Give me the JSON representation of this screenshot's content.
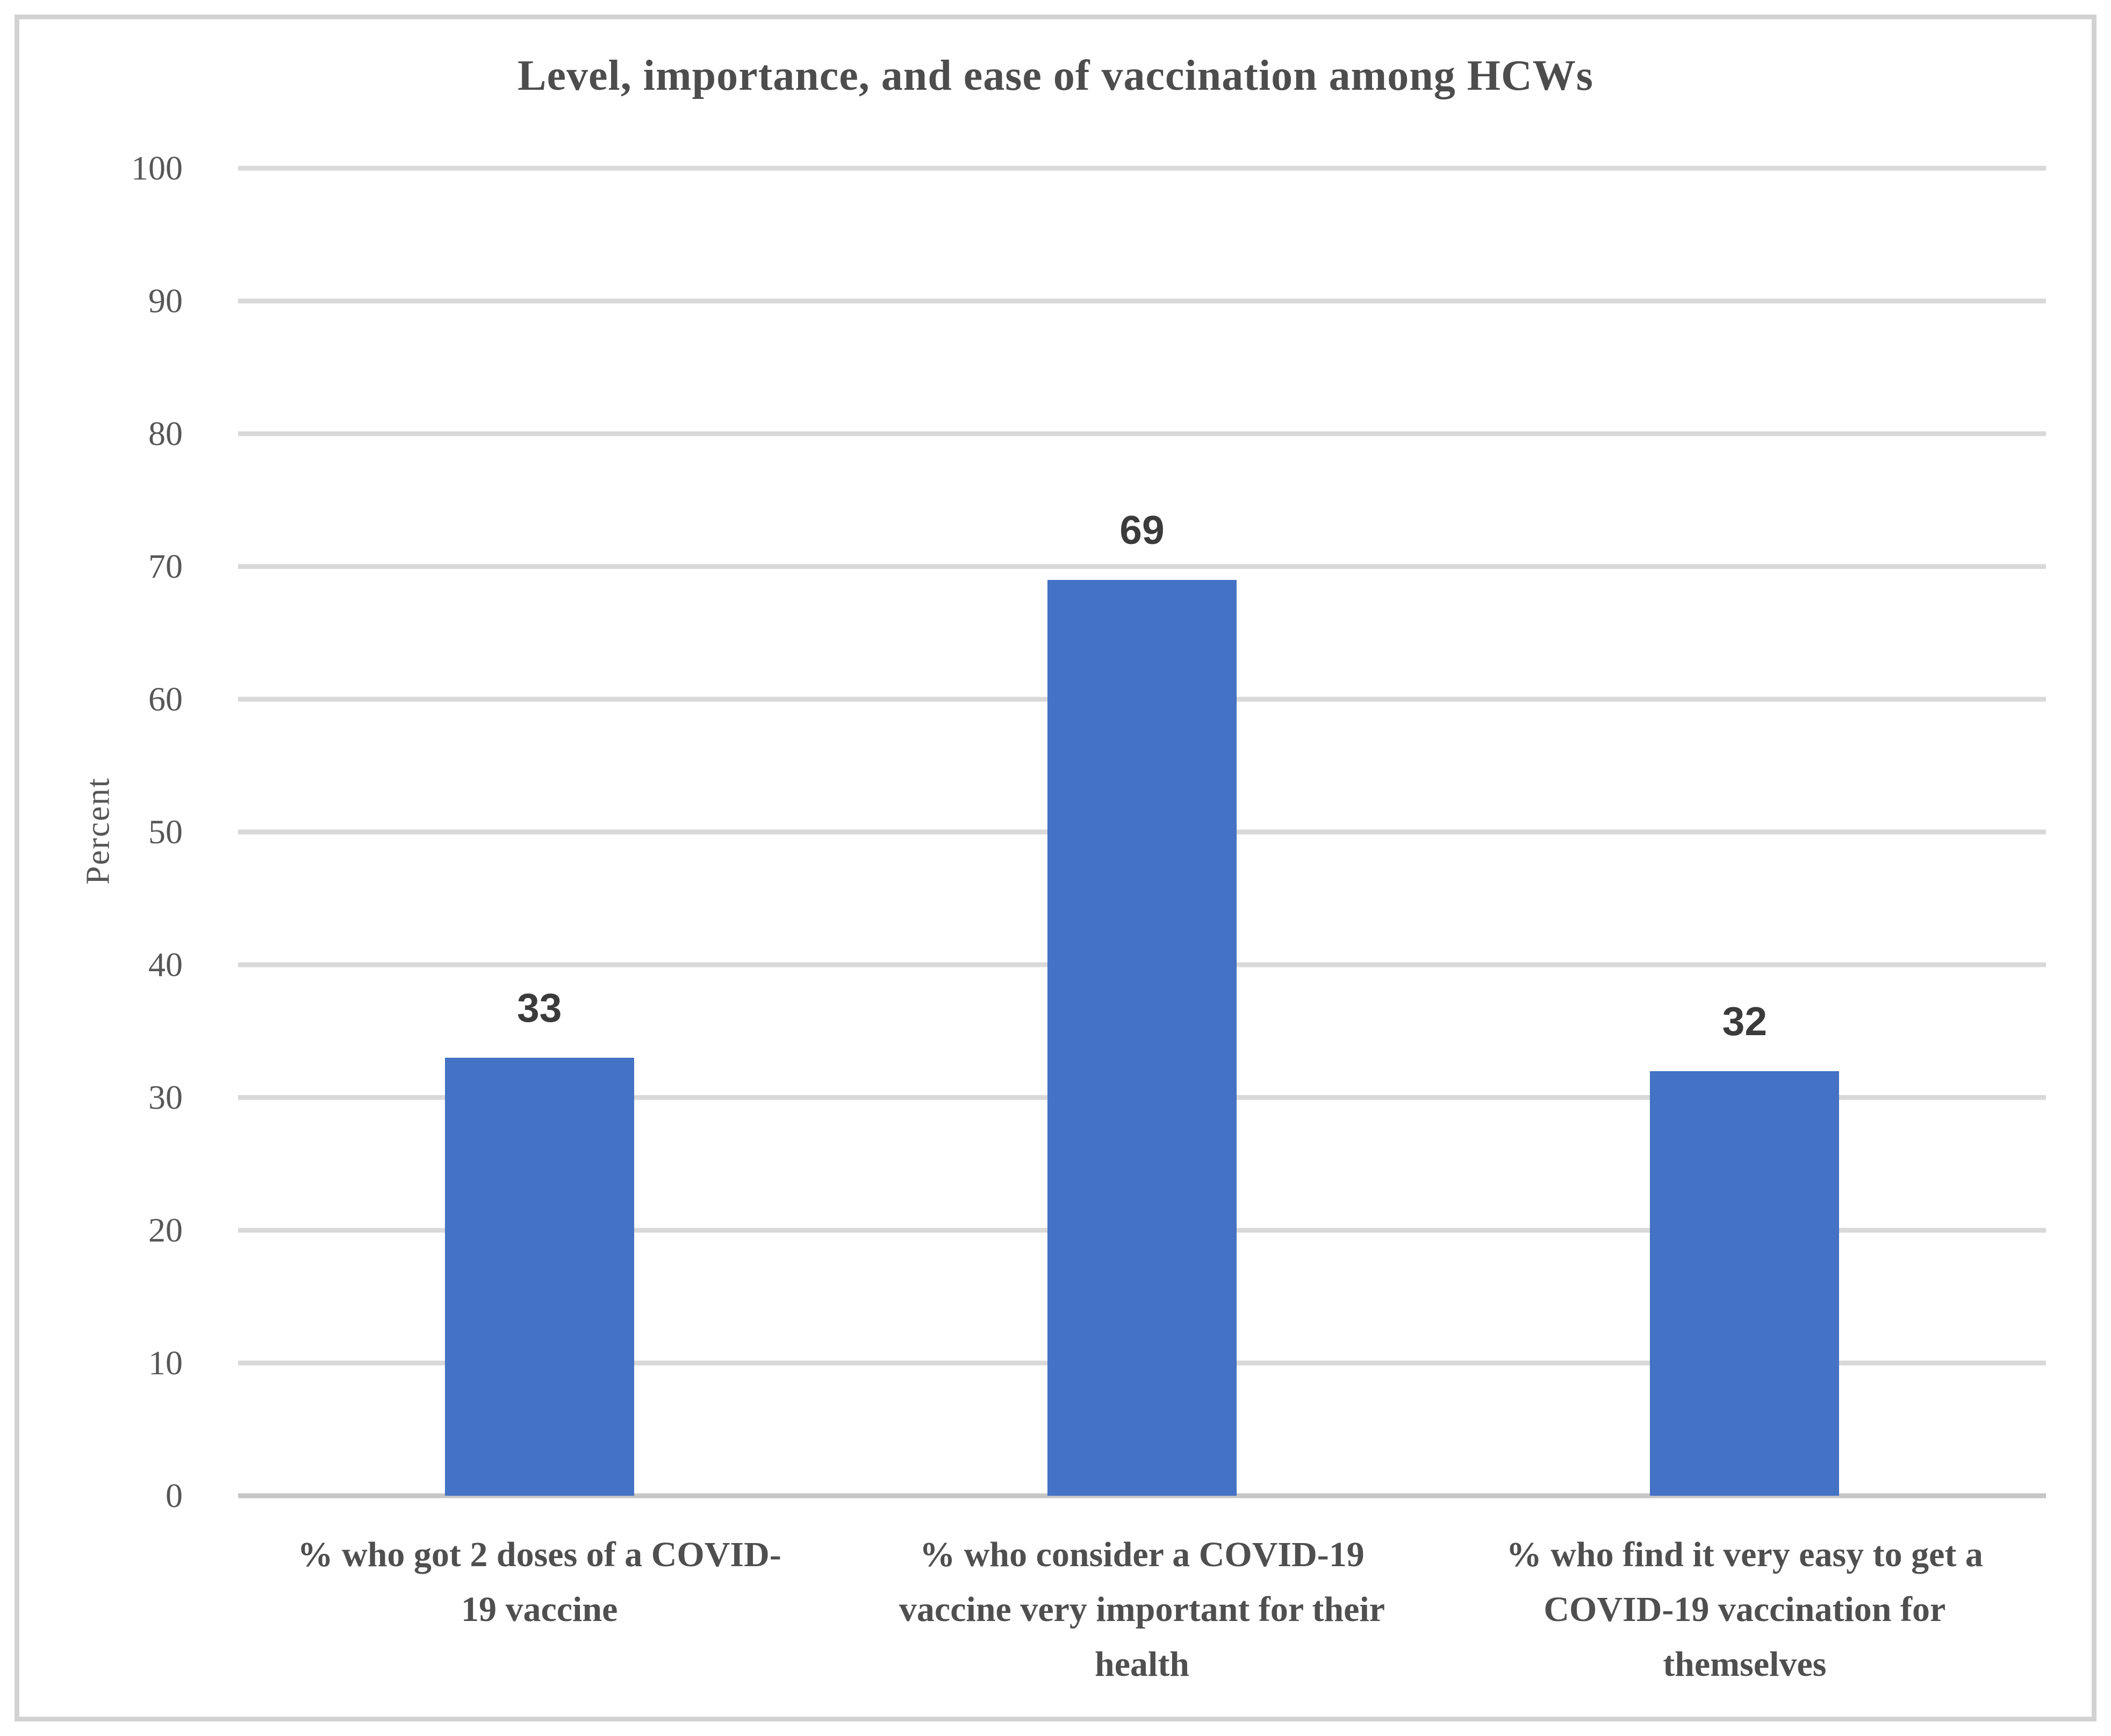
{
  "title": "Level, importance, and ease of vaccination among HCWs",
  "chart_data": {
    "type": "bar",
    "title": "Level, importance, and ease of vaccination among HCWs",
    "categories": [
      "% who got 2 doses of a COVID-19 vaccine",
      "% who consider a COVID-19 vaccine very important for their health",
      "% who find it very easy to get a COVID-19 vaccination for themselves"
    ],
    "categories_lines": [
      [
        "% who got 2 doses of a COVID-",
        "19 vaccine"
      ],
      [
        "% who consider a COVID-19",
        "vaccine very important for their",
        "health"
      ],
      [
        "% who find it very easy to get a",
        "COVID-19 vaccination for",
        "themselves"
      ]
    ],
    "values": [
      33,
      69,
      32
    ],
    "data_labels": [
      "33",
      "69",
      "32"
    ],
    "xlabel": "",
    "ylabel": "Percent",
    "ylim": [
      0,
      100
    ],
    "ytick_step": 10,
    "yticks": [
      "0",
      "10",
      "20",
      "30",
      "40",
      "50",
      "60",
      "70",
      "80",
      "90",
      "100"
    ],
    "grid": true,
    "legend": false,
    "bar_color": "#4472C4",
    "gridline_color": "#D9D9D9",
    "baseline_color": "#C6C6C6",
    "title_color": "#4D4D4D",
    "tick_text_color": "#575757",
    "value_label_color": "#3B3B3B"
  }
}
